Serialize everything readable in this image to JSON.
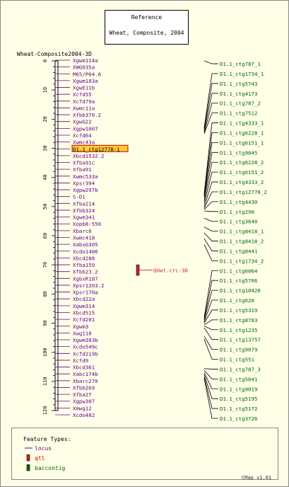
{
  "title_box": {
    "line1": "Reference",
    "line2": "Wheat, Composite, 2004"
  },
  "map_title": "Wheat-Composite2004-3D",
  "axis": {
    "min": 0,
    "max": 120,
    "ticks": [
      "0",
      "10",
      "20",
      "30",
      "40",
      "50",
      "60",
      "70",
      "80",
      "90",
      "100",
      "110",
      "120"
    ]
  },
  "markers": [
    {
      "name": "Xgwm114a",
      "pos": 0.0
    },
    {
      "name": "XWG035a",
      "pos": 2.0
    },
    {
      "name": "M65/P64.6",
      "pos": 4.0
    },
    {
      "name": "Xgwm183a",
      "pos": 6.0
    },
    {
      "name": "XgwE11b",
      "pos": 8.0
    },
    {
      "name": "Xcfd55",
      "pos": 10.0
    },
    {
      "name": "Xcfd79a",
      "pos": 12.0
    },
    {
      "name": "Xwmc11a",
      "pos": 14.0
    },
    {
      "name": "Xfbb370.2",
      "pos": 16.0
    },
    {
      "name": "XgwG22",
      "pos": 18.0
    },
    {
      "name": "Xgpw1007",
      "pos": 20.0
    },
    {
      "name": "Xcfd64",
      "pos": 22.0
    },
    {
      "name": "Xwmc43a",
      "pos": 24.0
    },
    {
      "name": "D1.1_ctg12778-1",
      "pos": 26.0,
      "highlight": true
    },
    {
      "name": "Xbcd1532.2",
      "pos": 28.0
    },
    {
      "name": "Xfba91c",
      "pos": 30.0
    },
    {
      "name": "Xfba91",
      "pos": 32.0
    },
    {
      "name": "Xwmc533a",
      "pos": 34.0
    },
    {
      "name": "Xpsr394",
      "pos": 36.0
    },
    {
      "name": "Xgpw297b",
      "pos": 38.0
    },
    {
      "name": "S-D1",
      "pos": 40.0
    },
    {
      "name": "Xfba214",
      "pos": 42.0
    },
    {
      "name": "Xfbb324",
      "pos": 44.0
    },
    {
      "name": "Xgwm341",
      "pos": 46.0
    },
    {
      "name": "Xopb8-550",
      "pos": 48.0
    },
    {
      "name": "Xbarc6",
      "pos": 50.0
    },
    {
      "name": "Xwmc418",
      "pos": 52.0
    },
    {
      "name": "XabxG305",
      "pos": 54.0
    },
    {
      "name": "Xcdo1406",
      "pos": 56.0
    },
    {
      "name": "Xbcd288",
      "pos": 58.0
    },
    {
      "name": "Xfba159",
      "pos": 60.0
    },
    {
      "name": "Xfbb23.2",
      "pos": 62.0
    },
    {
      "name": "XgbxR187",
      "pos": 64.0
    },
    {
      "name": "Xpsr1203.2",
      "pos": 66.0
    },
    {
      "name": "Xpsr170a",
      "pos": 68.0
    },
    {
      "name": "Xbcd22a",
      "pos": 70.0
    },
    {
      "name": "Xgwm314",
      "pos": 72.0
    },
    {
      "name": "Xbcd515",
      "pos": 74.0
    },
    {
      "name": "Xcfd201",
      "pos": 76.0
    },
    {
      "name": "Xgwm3",
      "pos": 78.0
    },
    {
      "name": "Xwg110",
      "pos": 80.0
    },
    {
      "name": "Xgwm383b",
      "pos": 82.0
    },
    {
      "name": "Xcdo549c",
      "pos": 84.0
    },
    {
      "name": "Xcfd219b",
      "pos": 86.0
    },
    {
      "name": "Xcfd9",
      "pos": 88.0
    },
    {
      "name": "Xbcd361",
      "pos": 90.0
    },
    {
      "name": "Xabc174b",
      "pos": 92.0
    },
    {
      "name": "Xbarc270",
      "pos": 94.0
    },
    {
      "name": "Xfbb269",
      "pos": 96.0
    },
    {
      "name": "Xfba27",
      "pos": 98.0
    },
    {
      "name": "Xgpw307",
      "pos": 100.0
    },
    {
      "name": "Xmwg12",
      "pos": 102.0
    },
    {
      "name": "Xcdo482",
      "pos": 104.0
    }
  ],
  "qtl": {
    "name": "QGwt.crc-3D",
    "start": 70.0,
    "end": 73.6
  },
  "contigs": [
    {
      "name": "D1.1_ctg787_1",
      "pos": 0.6
    },
    {
      "name": "D1.1_ctg1734_1",
      "pos": 4.6
    },
    {
      "name": "D1.1_ctg5743",
      "pos": 8.6
    },
    {
      "name": "D1.1_ctg4173",
      "pos": 12.6
    },
    {
      "name": "D1.1_ctg787_2",
      "pos": 16.6
    },
    {
      "name": "D1.1_ctg7512",
      "pos": 20.6
    },
    {
      "name": "D1.1_ctg4333_1",
      "pos": 24.6
    },
    {
      "name": "D1.1_ctg6228_1",
      "pos": 28.6
    },
    {
      "name": "D1.1_ctg6151_1",
      "pos": 32.6
    },
    {
      "name": "D1.1_ctg9045",
      "pos": 36.6
    },
    {
      "name": "D1.1_ctg6228_2",
      "pos": 40.6
    },
    {
      "name": "D1.1_ctg6151_2",
      "pos": 44.6
    },
    {
      "name": "D1.1_ctg4333_2",
      "pos": 48.6
    },
    {
      "name": "D1.1_ctg12778_2",
      "pos": 52.6
    },
    {
      "name": "D1.1_ctg4430",
      "pos": 56.6
    },
    {
      "name": "D1.1_ctg290",
      "pos": 60.6
    },
    {
      "name": "D1.1_ctg3640",
      "pos": 64.6
    },
    {
      "name": "D1.1_ctg8418_1",
      "pos": 68.6
    },
    {
      "name": "D1.1_ctg8418_2",
      "pos": 72.6
    },
    {
      "name": "D1.1_ctg8441",
      "pos": 76.6
    },
    {
      "name": "D1.1_ctg1734_2",
      "pos": 80.6
    },
    {
      "name": "D1.1_ctg6064",
      "pos": 84.6
    },
    {
      "name": "D1.1_ctg5766",
      "pos": 88.6
    },
    {
      "name": "D1.1_ctg10420",
      "pos": 92.6
    },
    {
      "name": "D1.1_ctg620",
      "pos": 96.6
    },
    {
      "name": "D1.1_ctg5319",
      "pos": 100.6
    },
    {
      "name": "D1.1_ctg8783",
      "pos": 104.6
    },
    {
      "name": "D1.1_ctg1235",
      "pos": 108.6
    },
    {
      "name": "D1.1_ctg13757",
      "pos": 112.6
    },
    {
      "name": "D1.1_ctg9079",
      "pos": 116.6
    },
    {
      "name": "D1.1_ctg551",
      "pos": 120.6
    },
    {
      "name": "D1.1_ctg787_3",
      "pos": 124.6
    },
    {
      "name": "D1.1_ctg5041",
      "pos": 128.6
    },
    {
      "name": "D1.1_ctg9019",
      "pos": 132.6
    },
    {
      "name": "D1.1_ctg5195",
      "pos": 136.6
    },
    {
      "name": "D1.1_ctg5172",
      "pos": 140.6
    },
    {
      "name": "D1.1_ctg3726",
      "pos": 144.6
    }
  ],
  "contig_links": [
    [
      0.6,
      0.0
    ],
    [
      4.6,
      23.0
    ],
    [
      8.6,
      23.5
    ],
    [
      12.6,
      24.0
    ],
    [
      16.6,
      24.6
    ],
    [
      20.6,
      25.0
    ],
    [
      24.6,
      45.5
    ],
    [
      28.6,
      46.0
    ],
    [
      32.6,
      46.4
    ],
    [
      36.6,
      47.0
    ],
    [
      40.6,
      48.0
    ],
    [
      44.6,
      49.0
    ],
    [
      48.6,
      50.0
    ],
    [
      52.6,
      50.6
    ],
    [
      56.6,
      51.0
    ],
    [
      60.6,
      51.5
    ],
    [
      64.6,
      54.0
    ],
    [
      68.6,
      57.0
    ],
    [
      72.6,
      59.0
    ],
    [
      76.6,
      61.0
    ],
    [
      80.6,
      63.0
    ],
    [
      84.6,
      88.0
    ],
    [
      88.6,
      88.6
    ],
    [
      92.6,
      89.0
    ],
    [
      96.6,
      89.6
    ],
    [
      100.6,
      90.0
    ],
    [
      104.6,
      90.6
    ],
    [
      108.6,
      91.0
    ],
    [
      112.6,
      91.6
    ],
    [
      116.6,
      94.5
    ],
    [
      120.6,
      95.5
    ],
    [
      124.6,
      105.6
    ],
    [
      128.6,
      106.2
    ],
    [
      132.6,
      107.0
    ],
    [
      136.6,
      107.6
    ],
    [
      140.6,
      108.4
    ],
    [
      144.6,
      109.0
    ]
  ],
  "legend": {
    "title": "Feature Types:",
    "items": [
      {
        "label": "locus",
        "color": "#660099"
      },
      {
        "label": "qtl",
        "color": "#cc0000"
      },
      {
        "label": "baccontig",
        "color": "#006600"
      }
    ]
  },
  "footer": "CMap v1.01",
  "colors": {
    "locus": "#660099",
    "qtl": "#cc2222",
    "contig": "#006600",
    "highlight_bg": "#ffcc33",
    "highlight_border": "#cc0000"
  }
}
